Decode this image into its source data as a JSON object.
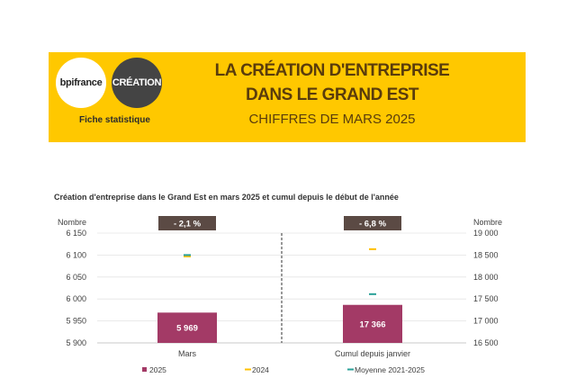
{
  "header": {
    "logo_bpi": "bpifrance",
    "logo_creation": "CRÉATION",
    "subtitle_left": "Fiche statistique",
    "title_line1": "LA CRÉATION D'ENTREPRISE",
    "title_line2": "DANS LE GRAND EST",
    "title_line3": "CHIFFRES DE MARS 2025"
  },
  "colors": {
    "banner": "#ffc800",
    "bar_2025": "#a33a66",
    "marker_2024": "#ffc000",
    "marker_avg": "#2aa198",
    "badge": "#5b4a44"
  },
  "chart_data": {
    "type": "bar",
    "title": "Création d'entreprise dans le Grand Est en mars 2025 et cumul depuis le début de l'année",
    "categories": [
      "Mars",
      "Cumul depuis janvier"
    ],
    "left_axis": {
      "label": "Nombre",
      "ylim": [
        5900,
        6150
      ],
      "ticks": [
        "6 150",
        "6 100",
        "6 050",
        "6 000",
        "5 950",
        "5 900"
      ]
    },
    "right_axis": {
      "label": "Nombre",
      "ylim": [
        16500,
        19000
      ],
      "ticks": [
        "19 000",
        "18 500",
        "18 000",
        "17 500",
        "17 000",
        "16 500"
      ]
    },
    "series": [
      {
        "name": "2025",
        "values": [
          5969,
          17366
        ],
        "labels": [
          "5 969",
          "17 366"
        ]
      },
      {
        "name": "2024",
        "values": [
          6097,
          18634
        ]
      },
      {
        "name": "Moyenne 2021-2025",
        "values": [
          6100,
          17610
        ]
      }
    ],
    "badges": [
      "- 2,1 %",
      "- 6,8 %"
    ],
    "legend": [
      "2025",
      "2024",
      "Moyenne 2021-2025"
    ],
    "legend_position": "bottom"
  }
}
